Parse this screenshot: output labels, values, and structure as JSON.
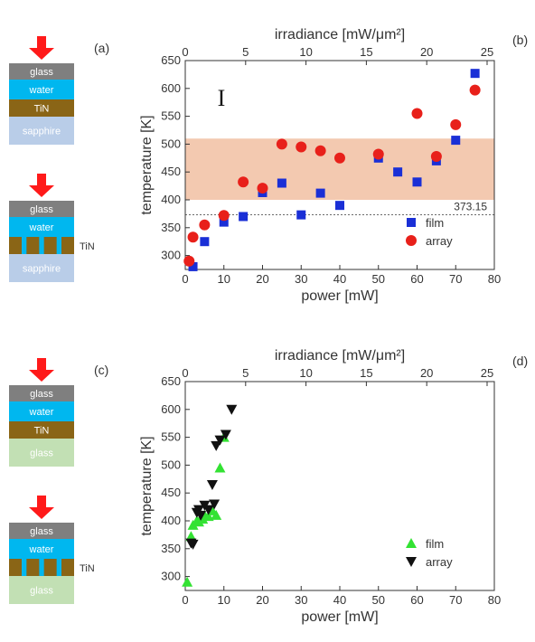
{
  "colors": {
    "arrow": "#ff1a1a",
    "glass_layer": "#7f7f7f",
    "water_layer": "#00b7ef",
    "tin_layer": "#8a6516",
    "sapphire_layer": "#b9cde8",
    "glass_substrate": "#c2e0b4",
    "band": "#f3c9b0",
    "film_b": "#1a2fd6",
    "array_b": "#e8201a",
    "film_d": "#33e233",
    "array_d": "#111111"
  },
  "schematics": {
    "panel_a_label": "(a)",
    "panel_c_label": "(c)",
    "top_a": [
      "glass",
      "water",
      "TiN",
      "sapphire"
    ],
    "bottom_a": [
      "glass",
      "water",
      "sapphire"
    ],
    "top_c": [
      "glass",
      "water",
      "TiN",
      "glass"
    ],
    "bottom_c": [
      "glass",
      "water",
      "glass"
    ],
    "tin_side_label": "TiN"
  },
  "chart_data": [
    {
      "panel": "(b)",
      "type": "scatter",
      "xlabel": "power [mW]",
      "ylabel": "temperature [K]",
      "top_xlabel": "irradiance [mW/μm²]",
      "xlim": [
        0,
        80
      ],
      "ylim": [
        275,
        650
      ],
      "top_xlim": [
        0,
        25.6
      ],
      "xticks": [
        0,
        10,
        20,
        30,
        40,
        50,
        60,
        70,
        80
      ],
      "yticks": [
        300,
        350,
        400,
        450,
        500,
        550,
        600,
        650
      ],
      "top_xticks": [
        0,
        5,
        10,
        15,
        20,
        25
      ],
      "band": [
        400,
        510
      ],
      "reference_line": {
        "y": 373.15,
        "label": "373.15"
      },
      "error_bar_marker": "I",
      "legend_position": "lower-right",
      "series": [
        {
          "name": "film",
          "marker": "square",
          "x": [
            2,
            5,
            10,
            15,
            20,
            25,
            30,
            35,
            40,
            50,
            55,
            60,
            65,
            70,
            75
          ],
          "y": [
            280,
            325,
            360,
            370,
            413,
            430,
            373,
            412,
            390,
            475,
            450,
            432,
            470,
            507,
            627
          ]
        },
        {
          "name": "array",
          "marker": "circle",
          "x": [
            1,
            2,
            5,
            10,
            15,
            20,
            25,
            30,
            35,
            40,
            50,
            60,
            65,
            70,
            75
          ],
          "y": [
            290,
            333,
            355,
            372,
            432,
            421,
            500,
            495,
            488,
            475,
            482,
            555,
            478,
            535,
            597
          ]
        }
      ]
    },
    {
      "panel": "(d)",
      "type": "scatter",
      "xlabel": "power [mW]",
      "ylabel": "temperature [K]",
      "top_xlabel": "irradiance [mW/μm²]",
      "xlim": [
        0,
        80
      ],
      "ylim": [
        275,
        650
      ],
      "top_xlim": [
        0,
        25.6
      ],
      "xticks": [
        0,
        10,
        20,
        30,
        40,
        50,
        60,
        70,
        80
      ],
      "yticks": [
        300,
        350,
        400,
        450,
        500,
        550,
        600,
        650
      ],
      "top_xticks": [
        0,
        5,
        10,
        15,
        20,
        25
      ],
      "legend_position": "lower-right",
      "series": [
        {
          "name": "film",
          "marker": "triangle-up",
          "x": [
            0.5,
            1.5,
            2,
            3,
            3.5,
            4.5,
            5,
            6,
            7,
            8,
            9,
            10
          ],
          "y": [
            290,
            372,
            392,
            400,
            398,
            403,
            410,
            408,
            418,
            410,
            495,
            550
          ]
        },
        {
          "name": "array",
          "marker": "triangle-down",
          "x": [
            1.5,
            2,
            3,
            3.5,
            4,
            5,
            6,
            7,
            7.5,
            8,
            9,
            10.5,
            12
          ],
          "y": [
            360,
            358,
            415,
            420,
            410,
            428,
            420,
            465,
            430,
            535,
            545,
            555,
            600
          ]
        }
      ]
    }
  ]
}
